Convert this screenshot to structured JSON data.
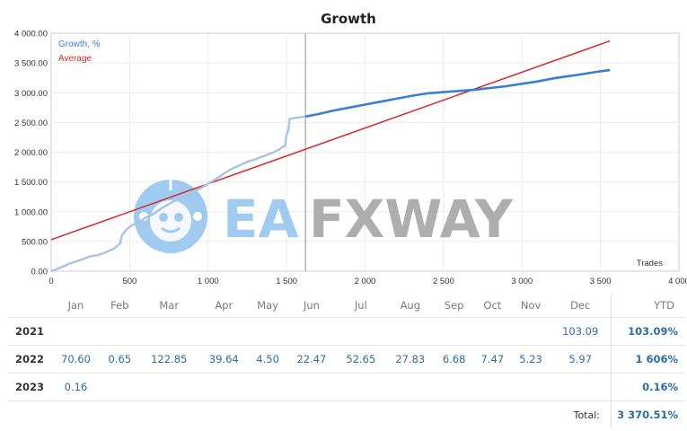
{
  "chart_data": {
    "type": "line",
    "title": "Growth",
    "xlabel": "Trades",
    "ylabel": "",
    "xlim": [
      0,
      4000
    ],
    "ylim": [
      0,
      4000
    ],
    "x_ticks": [
      0,
      500,
      1000,
      1500,
      2000,
      2500,
      3000,
      3500,
      4000
    ],
    "x_tick_labels": [
      "0",
      "500",
      "1 000",
      "1 500",
      "2 000",
      "2 500",
      "3 000",
      "3 500",
      "4 000"
    ],
    "y_ticks": [
      0,
      500,
      1000,
      1500,
      2000,
      2500,
      3000,
      3500,
      4000
    ],
    "y_tick_labels": [
      "0.00",
      "500.00",
      "1 000.00",
      "1 500.00",
      "2 000.00",
      "2 500.00",
      "3 000.00",
      "3 500.00",
      "4 000.00"
    ],
    "grid": true,
    "legend_position": "top-left",
    "vertical_marker_x": 1620,
    "series": [
      {
        "name": "Growth, %",
        "color": "#3b7fd0",
        "history_color": "#a7c4e2",
        "split_at_x": 1620,
        "points": [
          [
            0,
            0
          ],
          [
            60,
            60
          ],
          [
            120,
            130
          ],
          [
            200,
            200
          ],
          [
            250,
            250
          ],
          [
            300,
            270
          ],
          [
            350,
            320
          ],
          [
            400,
            380
          ],
          [
            420,
            420
          ],
          [
            440,
            470
          ],
          [
            450,
            600
          ],
          [
            480,
            700
          ],
          [
            520,
            780
          ],
          [
            560,
            820
          ],
          [
            600,
            900
          ],
          [
            650,
            960
          ],
          [
            700,
            1050
          ],
          [
            750,
            1130
          ],
          [
            800,
            1200
          ],
          [
            850,
            1260
          ],
          [
            900,
            1330
          ],
          [
            950,
            1390
          ],
          [
            1000,
            1470
          ],
          [
            1050,
            1550
          ],
          [
            1100,
            1640
          ],
          [
            1150,
            1720
          ],
          [
            1200,
            1780
          ],
          [
            1250,
            1840
          ],
          [
            1300,
            1880
          ],
          [
            1350,
            1930
          ],
          [
            1400,
            1980
          ],
          [
            1450,
            2040
          ],
          [
            1470,
            2080
          ],
          [
            1480,
            2100
          ],
          [
            1490,
            2100
          ],
          [
            1500,
            2300
          ],
          [
            1510,
            2350
          ],
          [
            1520,
            2560
          ],
          [
            1560,
            2580
          ],
          [
            1620,
            2600
          ],
          [
            1700,
            2640
          ],
          [
            1800,
            2700
          ],
          [
            1900,
            2750
          ],
          [
            2000,
            2800
          ],
          [
            2100,
            2850
          ],
          [
            2200,
            2900
          ],
          [
            2300,
            2950
          ],
          [
            2400,
            2990
          ],
          [
            2500,
            3010
          ],
          [
            2600,
            3030
          ],
          [
            2700,
            3050
          ],
          [
            2800,
            3080
          ],
          [
            2900,
            3110
          ],
          [
            3000,
            3150
          ],
          [
            3100,
            3190
          ],
          [
            3200,
            3240
          ],
          [
            3300,
            3280
          ],
          [
            3400,
            3320
          ],
          [
            3500,
            3360
          ],
          [
            3560,
            3380
          ]
        ]
      },
      {
        "name": "Average",
        "color": "#d42a2a",
        "points": [
          [
            0,
            530
          ],
          [
            3560,
            3870
          ]
        ]
      }
    ]
  },
  "watermark": {
    "text_ea": "EA",
    "text_fxway": "FXWAY",
    "color_ea": "#8fc3ee",
    "color_fxway": "#a0a0a0"
  },
  "table": {
    "months": [
      "Jan",
      "Feb",
      "Mar",
      "Apr",
      "May",
      "Jun",
      "Jul",
      "Aug",
      "Sep",
      "Oct",
      "Nov",
      "Dec"
    ],
    "ytd_header": "YTD",
    "rows": [
      {
        "year": "2021",
        "values": [
          "",
          "",
          "",
          "",
          "",
          "",
          "",
          "",
          "",
          "",
          "",
          "103.09"
        ],
        "ytd": "103.09%"
      },
      {
        "year": "2022",
        "values": [
          "70.60",
          "0.65",
          "122.85",
          "39.64",
          "4.50",
          "22.47",
          "52.65",
          "27.83",
          "6.68",
          "7.47",
          "5.23",
          "5.97"
        ],
        "ytd": "1 606%"
      },
      {
        "year": "2023",
        "values": [
          "0.16",
          "",
          "",
          "",
          "",
          "",
          "",
          "",
          "",
          "",
          "",
          ""
        ],
        "ytd": "0.16%"
      }
    ],
    "total_label": "Total:",
    "total_value": "3 370.51%"
  }
}
